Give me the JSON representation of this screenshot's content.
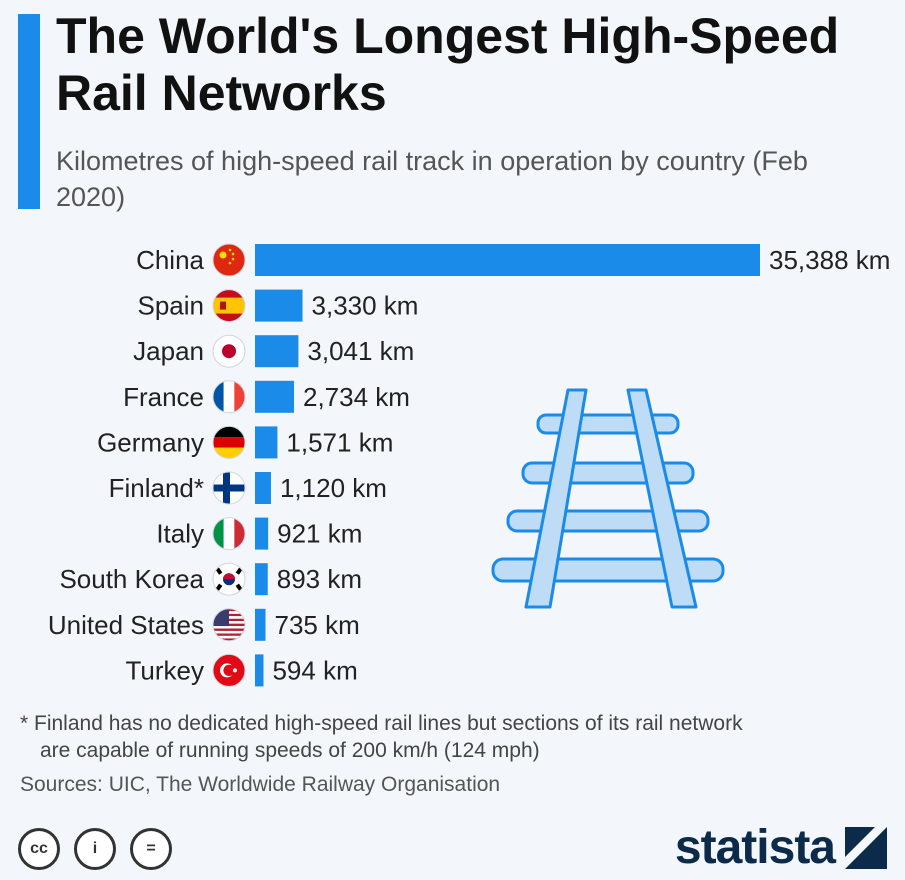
{
  "header": {
    "title": "The World's Longest High-Speed Rail Networks",
    "subtitle": "Kilometres of high-speed rail track in operation by country (Feb 2020)"
  },
  "chart_data": {
    "type": "bar",
    "orientation": "horizontal",
    "categories": [
      "China",
      "Spain",
      "Japan",
      "France",
      "Germany",
      "Finland*",
      "Italy",
      "South Korea",
      "United States",
      "Turkey"
    ],
    "values": [
      35388,
      3330,
      3041,
      2734,
      1571,
      1120,
      921,
      893,
      735,
      594
    ],
    "value_labels": [
      "35,388 km",
      "3,330 km",
      "3,041 km",
      "2,734 km",
      "1,571 km",
      "1,120 km",
      "921 km",
      "893 km",
      "735 km",
      "594 km"
    ],
    "flags": [
      "china-flag-icon",
      "spain-flag-icon",
      "japan-flag-icon",
      "france-flag-icon",
      "germany-flag-icon",
      "finland-flag-icon",
      "italy-flag-icon",
      "south-korea-flag-icon",
      "united-states-flag-icon",
      "turkey-flag-icon"
    ],
    "bar_color": "#1a8be8",
    "xlim": [
      0,
      35388
    ]
  },
  "footnote": {
    "line1": "* Finland has no dedicated high-speed rail lines but sections of its rail network",
    "line2": "are capable of running speeds of 200 km/h (124 mph)"
  },
  "sources": "Sources: UIC, The Worldwide Railway Organisation",
  "license_icons": [
    "cc",
    "i",
    "="
  ],
  "logo": "statista",
  "colors": {
    "accent": "#1a8be8",
    "rail_fill": "#bfdcf7",
    "rail_stroke": "#1a8be8"
  }
}
